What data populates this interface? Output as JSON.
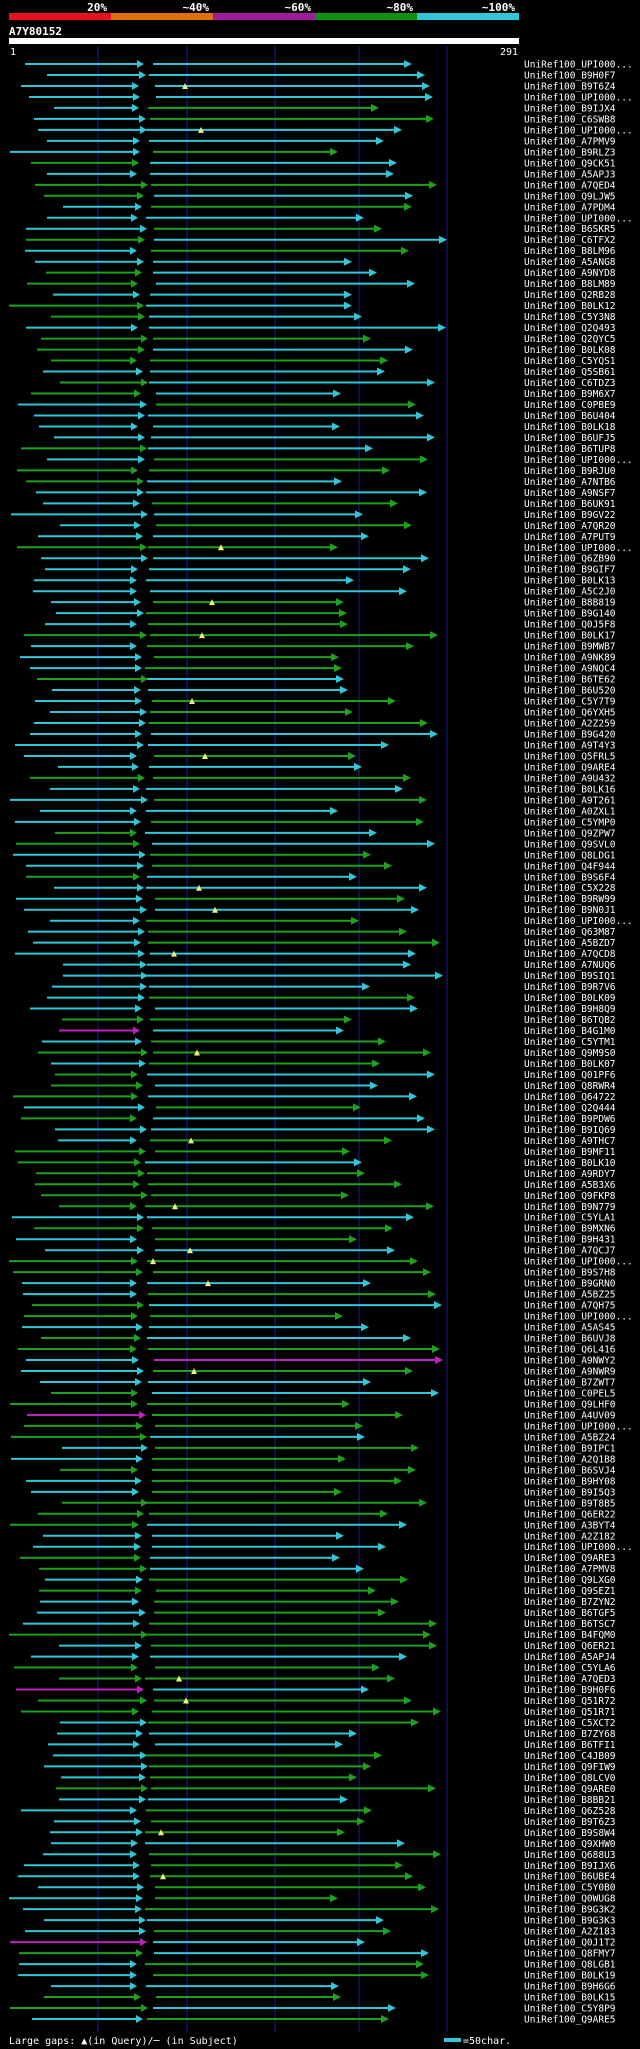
{
  "chart_data": {
    "type": "alignment-overview",
    "query_id": "A7Y80152",
    "ruler_start": "1",
    "ruler_end": "291",
    "query_length": 291,
    "identity_legend": [
      {
        "label": "20%",
        "color": "#e8101c"
      },
      {
        "label": "~40%",
        "color": "#e0700c"
      },
      {
        "label": "~60%",
        "color": "#9c1c9c"
      },
      {
        "label": "~80%",
        "color": "#109010"
      },
      {
        "label": "~100%",
        "color": "#30c8d8"
      }
    ],
    "footer_gap_text": "Large gaps: ▲(in Query)/─ (in Subject)",
    "footer_scale_text": "=50char.",
    "hits": [
      "UniRef100_UPI000...",
      "UniRef100_B9H0F7",
      "UniRef100_B9T6Z4",
      "UniRef100_UPI000...",
      "UniRef100_B9IJX4",
      "UniRef100_C6SWB8",
      "UniRef100_UPI000...",
      "UniRef100_A7PMV9",
      "UniRef100_B9RLZ3",
      "UniRef100_Q9CK51",
      "UniRef100_A5APJ3",
      "UniRef100_A7QED4",
      "UniRef100_Q9LJW5",
      "UniRef100_A7PDM4",
      "UniRef100_UPI000...",
      "UniRef100_B6SKR5",
      "UniRef100_C6TFX2",
      "UniRef100_B8LM96",
      "UniRef100_A5ANG8",
      "UniRef100_A9NYD8",
      "UniRef100_B8LM89",
      "UniRef100_Q2RB28",
      "UniRef100_B0LK12",
      "UniRef100_C5Y3N8",
      "UniRef100_Q2Q493",
      "UniRef100_Q2QYC5",
      "UniRef100_B0LK08",
      "UniRef100_C5YQS1",
      "UniRef100_Q5SB61",
      "UniRef100_C6TDZ3",
      "UniRef100_B9M6X7",
      "UniRef100_C0PBE9",
      "UniRef100_B6U404",
      "UniRef100_B0LK18",
      "UniRef100_B6UFJ5",
      "UniRef100_B6TUP8",
      "UniRef100_UPI000...",
      "UniRef100_B9RJU0",
      "UniRef100_A7NTB6",
      "UniRef100_A9NSF7",
      "UniRef100_B6UK91",
      "UniRef100_B9GV22",
      "UniRef100_A7QR20",
      "UniRef100_A7PUT9",
      "UniRef100_UPI000...",
      "UniRef100_Q6ZB90",
      "UniRef100_B9GIF7",
      "UniRef100_B0LK13",
      "UniRef100_A5C2J0",
      "UniRef100_B8B819",
      "UniRef100_B9G140",
      "UniRef100_Q0J5F8",
      "UniRef100_B0LK17",
      "UniRef100_B9MWB7",
      "UniRef100_A9NK89",
      "UniRef100_A9NQC4",
      "UniRef100_B6TE62",
      "UniRef100_B6U520",
      "UniRef100_C5Y7T9",
      "UniRef100_Q6YXH5",
      "UniRef100_A2Z259",
      "UniRef100_B9G420",
      "UniRef100_A9T4Y3",
      "UniRef100_Q5FRL5",
      "UniRef100_Q9ARE4",
      "UniRef100_A9U432",
      "UniRef100_B0LK16",
      "UniRef100_A9T261",
      "UniRef100_A0ZXL1",
      "UniRef100_C5YMP0",
      "UniRef100_Q9ZPW7",
      "UniRef100_Q9SVL0",
      "UniRef100_Q8LDG1",
      "UniRef100_Q4F944",
      "UniRef100_B9S6F4",
      "UniRef100_C5X228",
      "UniRef100_B9RW99",
      "UniRef100_B9N0J1",
      "UniRef100_UPI000...",
      "UniRef100_Q63M87",
      "UniRef100_A5BZD7",
      "UniRef100_A7QCD8",
      "UniRef100_A7NUQ6",
      "UniRef100_B9SIQ1",
      "UniRef100_B9R7V6",
      "UniRef100_B0LK09",
      "UniRef100_B9H8Q9",
      "UniRef100_B6TQB2",
      "UniRef100_B4G1M0",
      "UniRef100_C5YTM1",
      "UniRef100_Q9M9S0",
      "UniRef100_B0LK07",
      "UniRef100_Q01PF6",
      "UniRef100_Q8RWR4",
      "UniRef100_Q64722",
      "UniRef100_Q2Q444",
      "UniRef100_B9PDW6",
      "UniRef100_B9IQ69",
      "UniRef100_A9THC7",
      "UniRef100_B9MF11",
      "UniRef100_B0LK10",
      "UniRef100_A9RDY7",
      "UniRef100_A5B3X6",
      "UniRef100_Q9FKP8",
      "UniRef100_B9N779",
      "UniRef100_C5YLA1",
      "UniRef100_B9MXN6",
      "UniRef100_B9H431",
      "UniRef100_A7QCJ7",
      "UniRef100_UPI000...",
      "UniRef100_B9S7H8",
      "UniRef100_B9GRN0",
      "UniRef100_A5BZ25",
      "UniRef100_A7QH75",
      "UniRef100_UPI000...",
      "UniRef100_A5AS45",
      "UniRef100_B6UVJ8",
      "UniRef100_Q6L416",
      "UniRef100_A9NWY2",
      "UniRef100_A9NWR9",
      "UniRef100_B7ZWT7",
      "UniRef100_C0PEL5",
      "UniRef100_Q9LHF0",
      "UniRef100_A4UV09",
      "UniRef100_UPI000...",
      "UniRef100_A5BZ24",
      "UniRef100_B9IPC1",
      "UniRef100_A2Q1B8",
      "UniRef100_B6SVJ4",
      "UniRef100_B9HY08",
      "UniRef100_B9I5Q3",
      "UniRef100_B9T8B5",
      "UniRef100_Q6ER22",
      "UniRef100_A3BYT4",
      "UniRef100_A2Z182",
      "UniRef100_UPI000...",
      "UniRef100_Q9ARE3",
      "UniRef100_A7PMV8",
      "UniRef100_Q9LXG0",
      "UniRef100_Q9SEZ1",
      "UniRef100_B7ZYN2",
      "UniRef100_B6TGF5",
      "UniRef100_B6TSC7",
      "UniRef100_B4FQM0",
      "UniRef100_Q6ER21",
      "UniRef100_A5APJ4",
      "UniRef100_C5YLA6",
      "UniRef100_A7QED3",
      "UniRef100_B9H0F6",
      "UniRef100_Q51R72",
      "UniRef100_Q51R71",
      "UniRef100_C5XCT2",
      "UniRef100_B7ZY68",
      "UniRef100_B6TFI1",
      "UniRef100_C4JB09",
      "UniRef100_Q9FIW9",
      "UniRef100_Q8LCV0",
      "UniRef100_Q9ARE0",
      "UniRef100_B8BB21",
      "UniRef100_Q6Z528",
      "UniRef100_B9T6Z3",
      "UniRef100_B9S8W4",
      "UniRef100_Q9XHW0",
      "UniRef100_Q688U3",
      "UniRef100_B9IJX6",
      "UniRef100_B6UBE4",
      "UniRef100_C5Y0B0",
      "UniRef100_Q0WUG8",
      "UniRef100_B9G3K2",
      "UniRef100_B9G3K3",
      "UniRef100_A2Z183",
      "UniRef100_Q0J1T2",
      "UniRef100_Q8FMY7",
      "UniRef100_Q8LGB1",
      "UniRef100_B0LK19",
      "UniRef100_B9H6G6",
      "UniRef100_B0LK15",
      "UniRef100_C5Y8P9",
      "UniRef100_Q9ARE5"
    ]
  }
}
